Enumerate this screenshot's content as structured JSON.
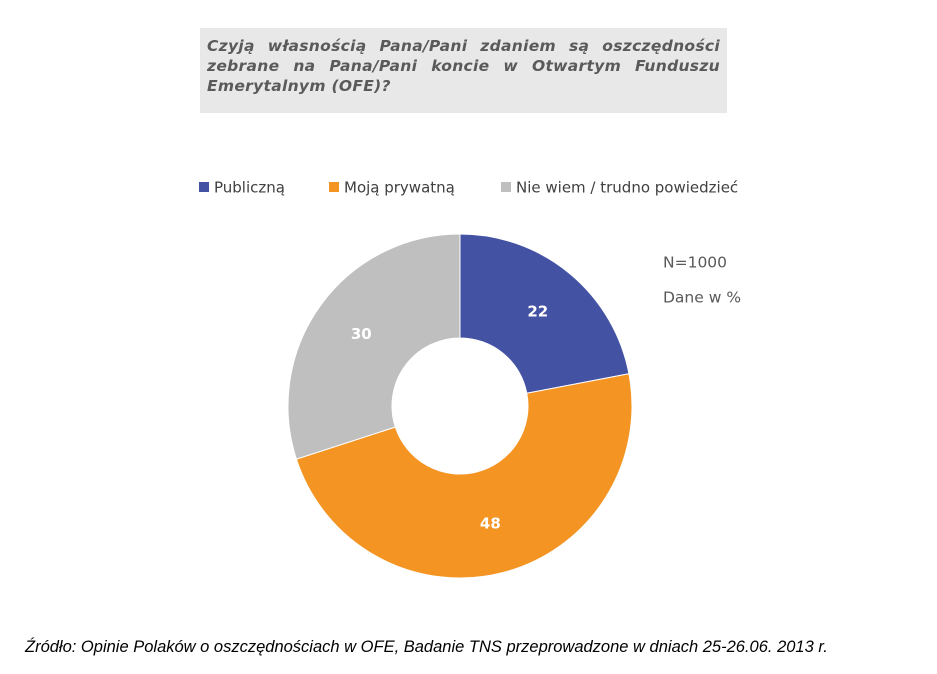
{
  "chart_data": {
    "type": "donut",
    "title": "Czyją własnością Pana/Pani zdaniem są oszczędności zebrane na Pana/Pani koncie w Otwartym Funduszu Emerytalnym (OFE)?",
    "categories": [
      "Publiczną",
      "Moją prywatną",
      "Nie wiem / trudno powiedzieć"
    ],
    "values": [
      22,
      48,
      30
    ],
    "colors": [
      "#4452a3",
      "#f39423",
      "#bfbfbf"
    ],
    "legend": "top",
    "annotations": [
      "N=1000",
      "Dane w %"
    ],
    "source": "Źródło: Opinie Polaków o oszczędnościach w OFE, Badanie TNS przeprowadzone w dniach 25-26.06. 2013 r."
  }
}
